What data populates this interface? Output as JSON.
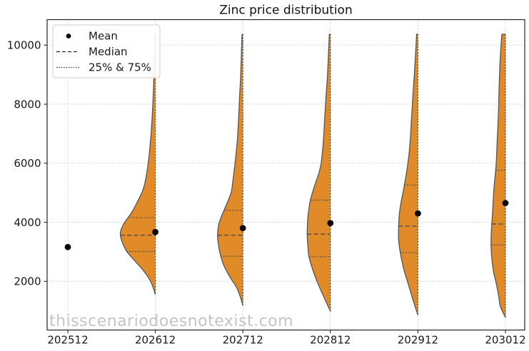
{
  "chart_data": {
    "type": "violin",
    "title": "Zinc price distribution",
    "watermark": "thisscenariodoesnotexist.com",
    "categories": [
      "202512",
      "202612",
      "202712",
      "202812",
      "202912",
      "203012"
    ],
    "xlabel": "",
    "ylabel": "",
    "y_ticks": [
      2000,
      4000,
      6000,
      8000,
      10000
    ],
    "ylim": [
      350,
      10860
    ],
    "grid": "dotted",
    "legend_position": "upper left",
    "legend": {
      "mean_label": "Mean",
      "median_label": "Median",
      "quartile_label": "25% & 75%"
    },
    "series": [
      {
        "category": "202512",
        "mean": 3160,
        "median": 3160,
        "q25": 3160,
        "q75": 3160,
        "min": 3160,
        "max": 3160,
        "profile": null
      },
      {
        "category": "202612",
        "mean": 3670,
        "median": 3560,
        "q25": 3010,
        "q75": 4160,
        "min": 1550,
        "max": 10370,
        "profile": [
          [
            10370,
            1
          ],
          [
            9000,
            2
          ],
          [
            8000,
            3.5
          ],
          [
            7000,
            6
          ],
          [
            6000,
            10
          ],
          [
            5200,
            16
          ],
          [
            4700,
            25
          ],
          [
            4300,
            34
          ],
          [
            4000,
            43
          ],
          [
            3750,
            48
          ],
          [
            3560,
            49
          ],
          [
            3300,
            46
          ],
          [
            3010,
            40
          ],
          [
            2700,
            29
          ],
          [
            2400,
            18
          ],
          [
            2100,
            9
          ],
          [
            1850,
            4
          ],
          [
            1550,
            0
          ]
        ]
      },
      {
        "category": "202712",
        "mean": 3800,
        "median": 3560,
        "q25": 2850,
        "q75": 4400,
        "min": 1180,
        "max": 10370,
        "profile": [
          [
            10370,
            1.2
          ],
          [
            9000,
            3
          ],
          [
            8300,
            4.5
          ],
          [
            7500,
            6
          ],
          [
            6700,
            8
          ],
          [
            6000,
            11
          ],
          [
            5400,
            14
          ],
          [
            5000,
            16.5
          ],
          [
            4600,
            23
          ],
          [
            4200,
            30
          ],
          [
            3900,
            34
          ],
          [
            3550,
            35.5
          ],
          [
            3200,
            34
          ],
          [
            2850,
            31
          ],
          [
            2500,
            26
          ],
          [
            2100,
            17
          ],
          [
            1800,
            9
          ],
          [
            1500,
            4
          ],
          [
            1180,
            0
          ]
        ]
      },
      {
        "category": "202812",
        "mean": 3970,
        "median": 3600,
        "q25": 2830,
        "q75": 4750,
        "min": 980,
        "max": 10370,
        "profile": [
          [
            10370,
            1.5
          ],
          [
            9000,
            4
          ],
          [
            8300,
            6
          ],
          [
            7500,
            8
          ],
          [
            6700,
            10
          ],
          [
            6000,
            13
          ],
          [
            5600,
            17
          ],
          [
            5250,
            22
          ],
          [
            4750,
            28
          ],
          [
            4300,
            31
          ],
          [
            4000,
            32
          ],
          [
            3600,
            32.5
          ],
          [
            3200,
            31.5
          ],
          [
            2830,
            30
          ],
          [
            2270,
            23
          ],
          [
            1900,
            17
          ],
          [
            1620,
            12
          ],
          [
            1300,
            6
          ],
          [
            980,
            0
          ]
        ]
      },
      {
        "category": "202912",
        "mean": 4300,
        "median": 3870,
        "q25": 2970,
        "q75": 5260,
        "min": 855,
        "max": 10370,
        "profile": [
          [
            10370,
            1.8
          ],
          [
            9000,
            5
          ],
          [
            8300,
            7
          ],
          [
            7500,
            9
          ],
          [
            6700,
            11
          ],
          [
            6000,
            14
          ],
          [
            5250,
            19
          ],
          [
            4760,
            23
          ],
          [
            4280,
            26
          ],
          [
            3860,
            27
          ],
          [
            3390,
            27
          ],
          [
            2950,
            24.5
          ],
          [
            2430,
            20
          ],
          [
            1860,
            13
          ],
          [
            1300,
            6
          ],
          [
            855,
            0
          ]
        ]
      },
      {
        "category": "203012",
        "mean": 4650,
        "median": 3940,
        "q25": 3230,
        "q75": 5760,
        "min": 775,
        "max": 10370,
        "profile": [
          [
            10370,
            5
          ],
          [
            9700,
            7
          ],
          [
            9200,
            8
          ],
          [
            8400,
            9
          ],
          [
            7580,
            10
          ],
          [
            6800,
            11.5
          ],
          [
            5970,
            13
          ],
          [
            5170,
            16
          ],
          [
            4360,
            18
          ],
          [
            3550,
            20
          ],
          [
            3100,
            20
          ],
          [
            2750,
            19
          ],
          [
            2300,
            16.5
          ],
          [
            1940,
            13
          ],
          [
            1500,
            9.5
          ],
          [
            1140,
            7
          ],
          [
            775,
            0
          ]
        ]
      }
    ],
    "colors": {
      "violin_fill": "#E08A28",
      "violin_edge": "#56565A",
      "flat_edge": "#4A4A4A",
      "stat_line": "#3F4450",
      "mean_dot": "#0A0A0A",
      "grid": "#C9C9C9",
      "spine": "#262626",
      "tick_label": "#1A1A1A",
      "title_color": "#111111",
      "watermark_color": "#C4C4C4",
      "legend_border": "#CCCCCC"
    }
  }
}
